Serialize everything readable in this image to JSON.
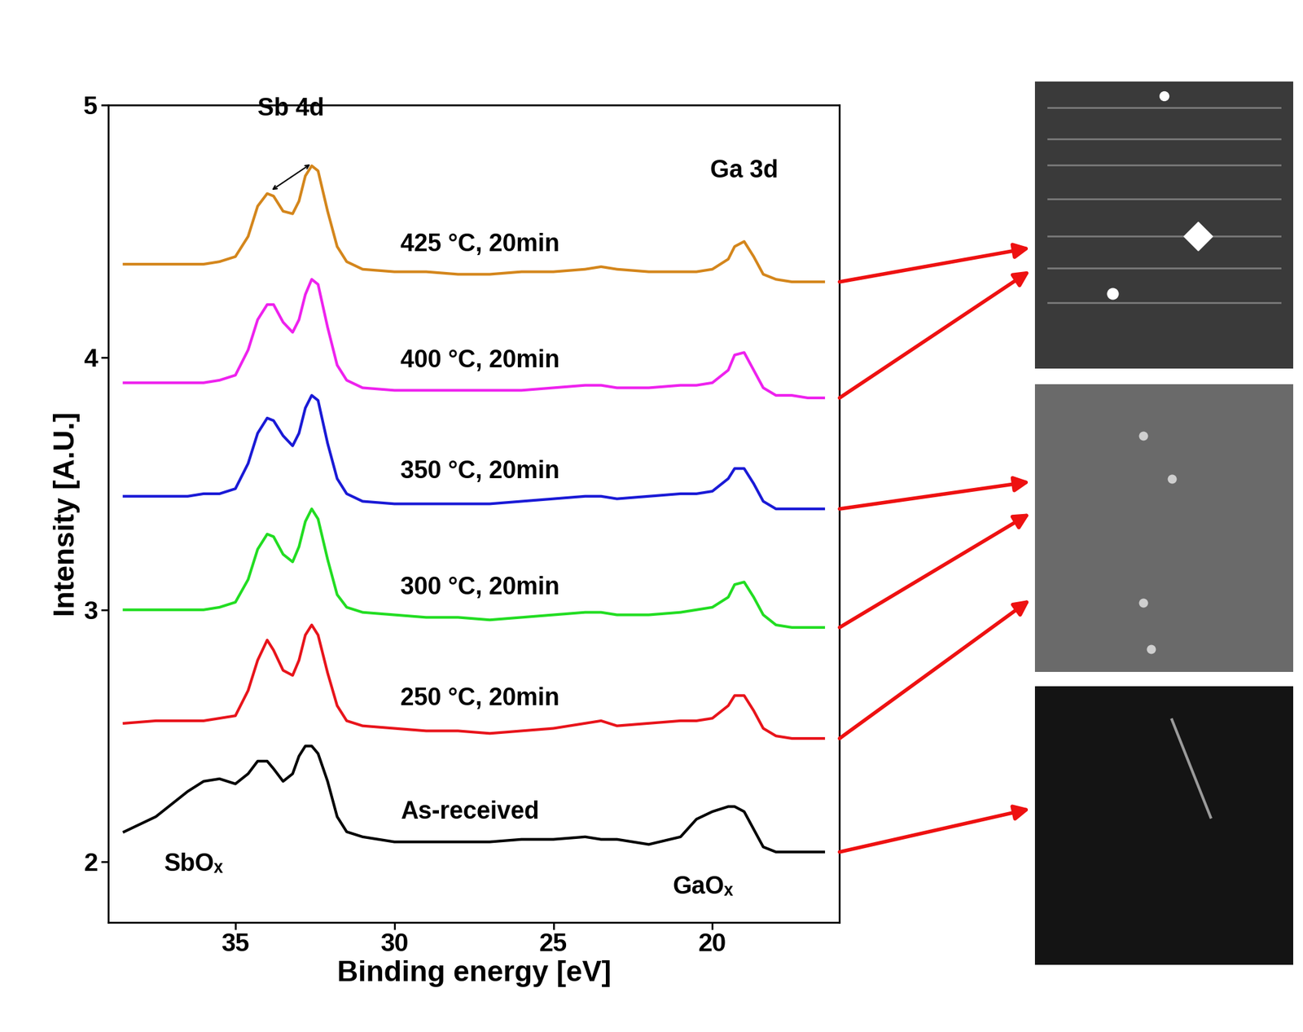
{
  "chart_data": {
    "type": "line",
    "x_label": "Binding energy [eV]",
    "y_label": "Intensity [A.U.]",
    "xlim": [
      39,
      16
    ],
    "ylim": [
      1.76,
      5
    ],
    "xticks": [
      35,
      30,
      25,
      20
    ],
    "yticks": [
      2,
      3,
      4,
      5
    ],
    "grid": false,
    "x": [
      38.5,
      37.5,
      36.5,
      36,
      35.5,
      35,
      34.6,
      34.3,
      34.0,
      33.8,
      33.5,
      33.2,
      33.0,
      32.8,
      32.6,
      32.4,
      32.1,
      31.8,
      31.5,
      31,
      30,
      29,
      28,
      27,
      26,
      25,
      24,
      23.5,
      23,
      22,
      21,
      20.5,
      20,
      19.5,
      19.3,
      19.0,
      18.7,
      18.4,
      18,
      17.5,
      17,
      16.5
    ],
    "series": [
      {
        "name": "As-received",
        "color": "#000000",
        "values": [
          2.12,
          2.18,
          2.28,
          2.32,
          2.33,
          2.31,
          2.35,
          2.4,
          2.4,
          2.37,
          2.32,
          2.35,
          2.42,
          2.46,
          2.46,
          2.43,
          2.32,
          2.18,
          2.12,
          2.1,
          2.08,
          2.08,
          2.08,
          2.08,
          2.09,
          2.09,
          2.1,
          2.09,
          2.09,
          2.07,
          2.1,
          2.17,
          2.2,
          2.22,
          2.22,
          2.2,
          2.13,
          2.06,
          2.04,
          2.04,
          2.04,
          2.04
        ]
      },
      {
        "name": "250 °C, 20min",
        "color": "#e8141b",
        "values": [
          2.55,
          2.56,
          2.56,
          2.56,
          2.57,
          2.58,
          2.68,
          2.8,
          2.88,
          2.84,
          2.76,
          2.74,
          2.8,
          2.9,
          2.94,
          2.9,
          2.75,
          2.62,
          2.56,
          2.54,
          2.53,
          2.52,
          2.52,
          2.51,
          2.52,
          2.53,
          2.55,
          2.56,
          2.54,
          2.55,
          2.56,
          2.56,
          2.57,
          2.62,
          2.66,
          2.66,
          2.6,
          2.53,
          2.5,
          2.49,
          2.49,
          2.49
        ]
      },
      {
        "name": "300 °C, 20min",
        "color": "#22dd22",
        "values": [
          3.0,
          3.0,
          3.0,
          3.0,
          3.01,
          3.03,
          3.12,
          3.24,
          3.3,
          3.29,
          3.22,
          3.19,
          3.25,
          3.35,
          3.4,
          3.36,
          3.2,
          3.06,
          3.01,
          2.99,
          2.98,
          2.97,
          2.97,
          2.96,
          2.97,
          2.98,
          2.99,
          2.99,
          2.98,
          2.98,
          2.99,
          3.0,
          3.01,
          3.05,
          3.1,
          3.11,
          3.05,
          2.98,
          2.94,
          2.93,
          2.93,
          2.93
        ]
      },
      {
        "name": "350 °C, 20min",
        "color": "#1a1ad6",
        "values": [
          3.45,
          3.45,
          3.45,
          3.46,
          3.46,
          3.48,
          3.58,
          3.7,
          3.76,
          3.75,
          3.69,
          3.65,
          3.7,
          3.8,
          3.85,
          3.83,
          3.66,
          3.52,
          3.46,
          3.43,
          3.42,
          3.42,
          3.42,
          3.42,
          3.43,
          3.44,
          3.45,
          3.45,
          3.44,
          3.45,
          3.46,
          3.46,
          3.47,
          3.52,
          3.56,
          3.56,
          3.5,
          3.43,
          3.4,
          3.4,
          3.4,
          3.4
        ]
      },
      {
        "name": "400 °C, 20min",
        "color": "#ee22ee",
        "values": [
          3.9,
          3.9,
          3.9,
          3.9,
          3.91,
          3.93,
          4.03,
          4.15,
          4.21,
          4.21,
          4.14,
          4.1,
          4.15,
          4.25,
          4.31,
          4.29,
          4.12,
          3.97,
          3.91,
          3.88,
          3.87,
          3.87,
          3.87,
          3.87,
          3.87,
          3.88,
          3.89,
          3.89,
          3.88,
          3.88,
          3.89,
          3.89,
          3.9,
          3.95,
          4.01,
          4.02,
          3.95,
          3.88,
          3.85,
          3.85,
          3.84,
          3.84
        ]
      },
      {
        "name": "425 °C, 20min",
        "color": "#d4861c",
        "values": [
          4.37,
          4.37,
          4.37,
          4.37,
          4.38,
          4.4,
          4.48,
          4.6,
          4.65,
          4.64,
          4.58,
          4.57,
          4.62,
          4.72,
          4.76,
          4.74,
          4.58,
          4.44,
          4.38,
          4.35,
          4.34,
          4.34,
          4.33,
          4.33,
          4.34,
          4.34,
          4.35,
          4.36,
          4.35,
          4.34,
          4.34,
          4.34,
          4.35,
          4.39,
          4.44,
          4.46,
          4.4,
          4.33,
          4.31,
          4.3,
          4.3,
          4.3
        ]
      }
    ],
    "annotations": [
      {
        "text": "Sb 4d",
        "points": [
          [
            33.9,
            4.66
          ],
          [
            32.6,
            4.77
          ]
        ]
      },
      {
        "text": "Ga 3d",
        "points": [
          [
            19.0,
            4.47
          ]
        ]
      },
      {
        "text": "SbOₓ",
        "points": [
          [
            36.3,
            2.26
          ]
        ]
      },
      {
        "text": "GaOₓ",
        "points": [
          [
            20.3,
            2.17
          ]
        ]
      }
    ]
  }
}
